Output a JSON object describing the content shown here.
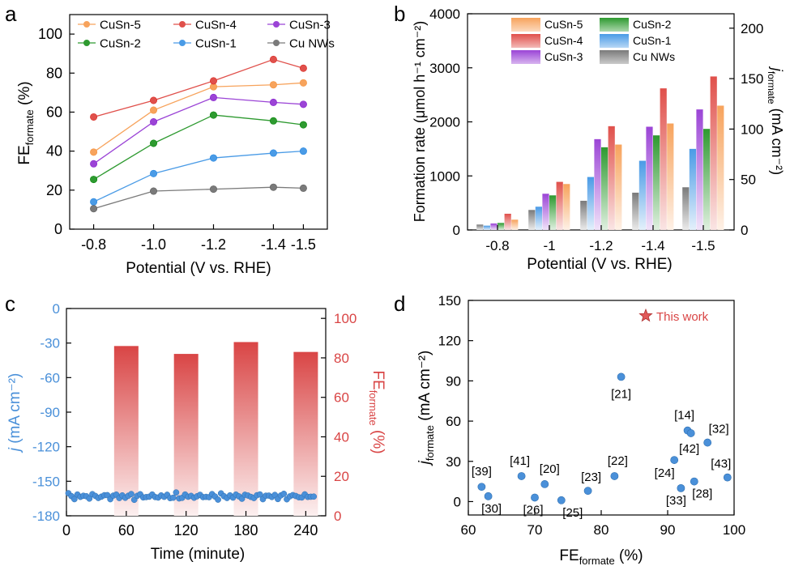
{
  "panel_letters": {
    "a": "a",
    "b": "b",
    "c": "c",
    "d": "d"
  },
  "colors": {
    "CuSn-5": "#f7a35c",
    "CuSn-4": "#e0504b",
    "CuSn-3": "#9b44d6",
    "CuSn-2": "#2e9a30",
    "CuSn-1": "#4a9be6",
    "Cu NWs": "#7a7a7a",
    "blue": "#4a90d9",
    "red": "#d94545",
    "star": "#e05a5a"
  },
  "chart_data": [
    {
      "panel": "a",
      "type": "line",
      "categories": [
        "-0.8",
        "-1.0",
        "-1.2",
        "-1.4",
        "-1.5"
      ],
      "x": [
        -0.8,
        -1.0,
        -1.2,
        -1.4,
        -1.5
      ],
      "xlim": [
        -0.72,
        -1.58
      ],
      "ylim": [
        0,
        110
      ],
      "yticks": [
        0,
        20,
        40,
        60,
        80,
        100
      ],
      "ytick_labels": [
        "0",
        "20",
        "40",
        "60",
        "80",
        "100"
      ],
      "xlabel": "Potential (V vs. RHE)",
      "ylabel": {
        "main": "FE",
        "sub": "formate",
        "unit": " (%)"
      },
      "series": [
        {
          "name": "CuSn-5",
          "values": [
            39.5,
            61,
            73,
            74,
            75
          ]
        },
        {
          "name": "CuSn-4",
          "values": [
            57.5,
            66,
            76,
            87,
            82.5
          ]
        },
        {
          "name": "CuSn-3",
          "values": [
            33.5,
            55,
            67.5,
            65,
            64
          ]
        },
        {
          "name": "CuSn-2",
          "values": [
            25.5,
            44,
            58.5,
            55.5,
            53.5
          ]
        },
        {
          "name": "CuSn-1",
          "values": [
            14,
            28.5,
            36.5,
            39,
            40
          ]
        },
        {
          "name": "Cu NWs",
          "values": [
            10.5,
            19.5,
            20.5,
            21.5,
            21
          ]
        }
      ]
    },
    {
      "panel": "b",
      "type": "bar",
      "categories": [
        "-0.8",
        "-1",
        "-1.2",
        "-1.4",
        "-1.5"
      ],
      "ylim": [
        0,
        4000
      ],
      "yticks": [
        0,
        1000,
        2000,
        3000,
        4000
      ],
      "ytick_labels": [
        "0",
        "1000",
        "2000",
        "3000",
        "4000"
      ],
      "y2lim": [
        0,
        214.3
      ],
      "y2ticks": [
        0,
        50,
        100,
        150,
        200
      ],
      "y2tick_labels": [
        "0",
        "50",
        "100",
        "150",
        "200"
      ],
      "xlabel": "Potential (V vs. RHE)",
      "ylabel": "Formation rate (μmol h⁻¹ cm⁻²)",
      "y2label": {
        "main": "j",
        "sub": "formate",
        "unit": " (mA cm⁻²)"
      },
      "series_order": [
        "Cu NWs",
        "CuSn-1",
        "CuSn-3",
        "CuSn-2",
        "CuSn-4",
        "CuSn-5"
      ],
      "series": [
        {
          "name": "Cu NWs",
          "values": [
            100,
            370,
            540,
            690,
            790
          ]
        },
        {
          "name": "CuSn-1",
          "values": [
            80,
            430,
            980,
            1280,
            1500
          ]
        },
        {
          "name": "CuSn-3",
          "values": [
            120,
            670,
            1680,
            1910,
            2230
          ]
        },
        {
          "name": "CuSn-2",
          "values": [
            130,
            640,
            1530,
            1750,
            1870
          ]
        },
        {
          "name": "CuSn-4",
          "values": [
            300,
            890,
            1920,
            2620,
            2840
          ]
        },
        {
          "name": "CuSn-5",
          "values": [
            190,
            850,
            1580,
            1970,
            2300
          ]
        }
      ],
      "legend": [
        [
          "CuSn-5",
          "CuSn-2"
        ],
        [
          "CuSn-4",
          "CuSn-1"
        ],
        [
          "CuSn-3",
          "Cu NWs"
        ]
      ]
    },
    {
      "panel": "c",
      "type": "bar+scatter",
      "xlim": [
        0,
        260
      ],
      "xticks": [
        0,
        60,
        120,
        180,
        240
      ],
      "xtick_labels": [
        "0",
        "60",
        "120",
        "180",
        "240"
      ],
      "ylim": [
        -180,
        0
      ],
      "yticks": [
        0,
        -30,
        -60,
        -90,
        -120,
        -150,
        -180
      ],
      "ytick_labels": [
        "0",
        "-30",
        "-60",
        "-90",
        "-120",
        "-150",
        "-180"
      ],
      "y2lim": [
        0,
        105
      ],
      "y2ticks": [
        0,
        20,
        40,
        60,
        80,
        100
      ],
      "y2tick_labels": [
        "0",
        "20",
        "40",
        "60",
        "80",
        "100"
      ],
      "xlabel": "Time (minute)",
      "ylabel": {
        "main": "j",
        "unit": " (mA cm⁻²)"
      },
      "y2label": {
        "main": "FE",
        "sub": "formate",
        "unit": " (%)"
      },
      "bars": {
        "x": [
          60,
          120,
          180,
          240
        ],
        "values": [
          86,
          82,
          88,
          83
        ]
      },
      "current": {
        "x_start": 2,
        "x_end": 248,
        "step": 3,
        "mean": -163,
        "amplitude": 2.5
      }
    },
    {
      "panel": "d",
      "type": "scatter",
      "xlim": [
        60,
        100
      ],
      "xticks": [
        60,
        70,
        80,
        90,
        100
      ],
      "xtick_labels": [
        "60",
        "70",
        "80",
        "90",
        "100"
      ],
      "ylim": [
        -10,
        150
      ],
      "yticks": [
        0,
        30,
        60,
        90,
        120,
        150
      ],
      "ytick_labels": [
        "0",
        "30",
        "60",
        "90",
        "120",
        "150"
      ],
      "xlabel": {
        "main": "FE",
        "sub": "formate",
        "unit": " (%)"
      },
      "ylabel": {
        "main": "j",
        "sub": "formate",
        "unit": " (mA cm⁻²)"
      },
      "legend_label": "This work",
      "points": [
        {
          "label": "[39]",
          "x": 62,
          "y": 11
        },
        {
          "label": "[30]",
          "x": 63,
          "y": 4
        },
        {
          "label": "[41]",
          "x": 68,
          "y": 19
        },
        {
          "label": "[26]",
          "x": 70,
          "y": 3
        },
        {
          "label": "[20]",
          "x": 71.5,
          "y": 13
        },
        {
          "label": "[25]",
          "x": 74,
          "y": 1
        },
        {
          "label": "[23]",
          "x": 78,
          "y": 8
        },
        {
          "label": "[22]",
          "x": 82,
          "y": 19
        },
        {
          "label": "[21]",
          "x": 83,
          "y": 93
        },
        {
          "label": "[24]",
          "x": 91,
          "y": 31
        },
        {
          "label": "[33]",
          "x": 92,
          "y": 10
        },
        {
          "label": "[14]",
          "x": 93,
          "y": 53
        },
        {
          "label": "[42]",
          "x": 93.5,
          "y": 51
        },
        {
          "label": "[28]",
          "x": 94,
          "y": 15
        },
        {
          "label": "[32]",
          "x": 96,
          "y": 44
        },
        {
          "label": "[43]",
          "x": 99,
          "y": 18
        }
      ]
    }
  ]
}
